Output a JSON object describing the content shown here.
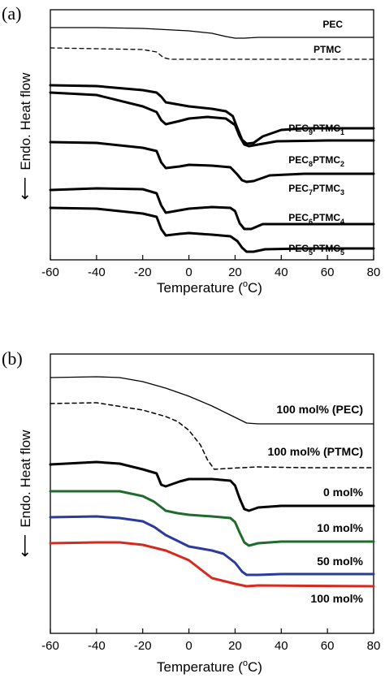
{
  "chart_data": [
    {
      "panel_label": "(a)",
      "type": "line",
      "xlabel": "Temperature (",
      "xlabel_sup": "o",
      "xlabel_end": "C)",
      "ylabel": "Endo. Heat flow",
      "ylabel_arrow": "⟵",
      "xlim": [
        -60,
        80
      ],
      "xticks": [
        -60,
        -40,
        -20,
        0,
        20,
        40,
        60,
        80
      ],
      "series": [
        {
          "label": {
            "base": "PEC"
          },
          "color": "#000000",
          "width": 1.3,
          "dashed": false,
          "points": [
            [
              -60,
              34
            ],
            [
              -40,
              34
            ],
            [
              -20,
              35
            ],
            [
              0,
              38
            ],
            [
              10,
              41
            ],
            [
              16,
              45
            ],
            [
              20,
              47
            ],
            [
              24,
              47
            ],
            [
              30,
              46
            ],
            [
              80,
              46
            ]
          ]
        },
        {
          "label": {
            "base": "PTMC"
          },
          "color": "#000000",
          "width": 1.3,
          "dashed": true,
          "points": [
            [
              -60,
              59
            ],
            [
              -40,
              60
            ],
            [
              -20,
              61
            ],
            [
              -14,
              64
            ],
            [
              -11,
              71
            ],
            [
              -8,
              73
            ],
            [
              0,
              73
            ],
            [
              20,
              73
            ],
            [
              80,
              73
            ]
          ]
        },
        {
          "label": {
            "base": "PEC",
            "s1": "9",
            "mid": "PTMC",
            "s2": "1"
          },
          "color": "#000000",
          "width": 3.0,
          "dashed": false,
          "points": [
            [
              -60,
              105
            ],
            [
              -40,
              106
            ],
            [
              -20,
              111
            ],
            [
              -14,
              114
            ],
            [
              -12,
              119
            ],
            [
              -10,
              126
            ],
            [
              -6,
              128
            ],
            [
              0,
              131
            ],
            [
              10,
              134
            ],
            [
              16,
              137
            ],
            [
              19,
              143
            ],
            [
              21,
              158
            ],
            [
              23,
              172
            ],
            [
              25,
              177
            ],
            [
              28,
              176
            ],
            [
              32,
              168
            ],
            [
              40,
              160
            ],
            [
              50,
              158
            ],
            [
              80,
              158
            ]
          ]
        },
        {
          "label": {
            "base": "PEC",
            "s1": "8",
            "mid": "PTMC",
            "s2": "2"
          },
          "color": "#000000",
          "width": 3.0,
          "dashed": false,
          "points": [
            [
              -60,
              114
            ],
            [
              -40,
              117
            ],
            [
              -20,
              131
            ],
            [
              -14,
              138
            ],
            [
              -12,
              148
            ],
            [
              -10,
              153
            ],
            [
              -4,
              149
            ],
            [
              0,
              146
            ],
            [
              8,
              144
            ],
            [
              16,
              146
            ],
            [
              20,
              154
            ],
            [
              22,
              168
            ],
            [
              24,
              178
            ],
            [
              26,
              180
            ],
            [
              30,
              178
            ],
            [
              38,
              174
            ],
            [
              60,
              173
            ],
            [
              80,
              173
            ]
          ]
        },
        {
          "label": {
            "base": "PEC",
            "s1": "7",
            "mid": "PTMC",
            "s2": "3"
          },
          "color": "#000000",
          "width": 3.0,
          "dashed": false,
          "points": [
            [
              -60,
              175
            ],
            [
              -40,
              176
            ],
            [
              -20,
              182
            ],
            [
              -14,
              186
            ],
            [
              -12,
              200
            ],
            [
              -10,
              207
            ],
            [
              -4,
              205
            ],
            [
              0,
              203
            ],
            [
              10,
              204
            ],
            [
              18,
              206
            ],
            [
              21,
              215
            ],
            [
              23,
              222
            ],
            [
              25,
              224
            ],
            [
              28,
              223
            ],
            [
              35,
              216
            ],
            [
              50,
              214
            ],
            [
              80,
              214
            ]
          ]
        },
        {
          "label": {
            "base": "PEC",
            "s1": "6",
            "mid": "PTMC",
            "s2": "4"
          },
          "color": "#000000",
          "width": 3.0,
          "dashed": false,
          "points": [
            [
              -60,
              234
            ],
            [
              -40,
              232
            ],
            [
              -20,
              233
            ],
            [
              -14,
              238
            ],
            [
              -12,
              253
            ],
            [
              -10,
              262
            ],
            [
              -4,
              259
            ],
            [
              0,
              257
            ],
            [
              10,
              255
            ],
            [
              18,
              256
            ],
            [
              20,
              260
            ],
            [
              22,
              275
            ],
            [
              24,
              282
            ],
            [
              27,
              282
            ],
            [
              32,
              276
            ],
            [
              50,
              276
            ],
            [
              80,
              276
            ]
          ]
        },
        {
          "label": {
            "base": "PEC",
            "s1": "5",
            "mid": "PTMC",
            "s2": "5"
          },
          "color": "#000000",
          "width": 3.0,
          "dashed": false,
          "points": [
            [
              -60,
              256
            ],
            [
              -40,
              257
            ],
            [
              -20,
              263
            ],
            [
              -14,
              267
            ],
            [
              -12,
              282
            ],
            [
              -10,
              290
            ],
            [
              -4,
              288
            ],
            [
              0,
              287
            ],
            [
              10,
              289
            ],
            [
              18,
              291
            ],
            [
              21,
              297
            ],
            [
              23,
              305
            ],
            [
              25,
              310
            ],
            [
              28,
              310
            ],
            [
              33,
              307
            ],
            [
              50,
              306
            ],
            [
              80,
              306
            ]
          ]
        }
      ]
    },
    {
      "panel_label": "(b)",
      "type": "line",
      "xlabel": "Temperature (",
      "xlabel_sup": "o",
      "xlabel_end": "C)",
      "ylabel": "Endo. Heat flow",
      "ylabel_arrow": "⟵",
      "xlim": [
        -60,
        80
      ],
      "xticks": [
        -60,
        -40,
        -20,
        0,
        20,
        40,
        60,
        80
      ],
      "series": [
        {
          "label": {
            "base": "100 mol% (PEC)"
          },
          "color": "#000000",
          "width": 1.3,
          "dashed": false,
          "points": [
            [
              -60,
              465
            ],
            [
              -40,
              464
            ],
            [
              -30,
              465
            ],
            [
              -20,
              470
            ],
            [
              -10,
              478
            ],
            [
              0,
              488
            ],
            [
              10,
              500
            ],
            [
              20,
              514
            ],
            [
              25,
              521
            ],
            [
              30,
              522
            ],
            [
              80,
              522
            ]
          ]
        },
        {
          "label": {
            "base": "100 mol% (PTMC)"
          },
          "color": "#000000",
          "width": 1.5,
          "dashed": true,
          "points": [
            [
              -60,
              497
            ],
            [
              -40,
              496
            ],
            [
              -20,
              505
            ],
            [
              -10,
              513
            ],
            [
              -5,
              519
            ],
            [
              0,
              530
            ],
            [
              5,
              548
            ],
            [
              8,
              566
            ],
            [
              11,
              578
            ],
            [
              16,
              577
            ],
            [
              30,
              575
            ],
            [
              50,
              576
            ],
            [
              80,
              576
            ]
          ]
        },
        {
          "label": {
            "base": "0 mol%"
          },
          "color": "#000000",
          "width": 3.0,
          "dashed": false,
          "points": [
            [
              -60,
              572
            ],
            [
              -40,
              569
            ],
            [
              -30,
              571
            ],
            [
              -20,
              578
            ],
            [
              -14,
              583
            ],
            [
              -12,
              597
            ],
            [
              -10,
              599
            ],
            [
              -4,
              593
            ],
            [
              0,
              590
            ],
            [
              10,
              590
            ],
            [
              18,
              592
            ],
            [
              20,
              598
            ],
            [
              22,
              614
            ],
            [
              24,
              627
            ],
            [
              26,
              629
            ],
            [
              30,
              625
            ],
            [
              40,
              623
            ],
            [
              80,
              623
            ]
          ]
        },
        {
          "label": {
            "base": "10 mol%"
          },
          "color": "#1e6b2d",
          "width": 3.0,
          "dashed": false,
          "points": [
            [
              -60,
              605
            ],
            [
              -40,
              605
            ],
            [
              -30,
              605
            ],
            [
              -20,
              611
            ],
            [
              -15,
              618
            ],
            [
              -10,
              629
            ],
            [
              -5,
              632
            ],
            [
              0,
              634
            ],
            [
              10,
              636
            ],
            [
              18,
              638
            ],
            [
              20,
              643
            ],
            [
              22,
              656
            ],
            [
              24,
              668
            ],
            [
              26,
              672
            ],
            [
              30,
              669
            ],
            [
              40,
              667
            ],
            [
              80,
              667
            ]
          ]
        },
        {
          "label": {
            "base": "50 mol%"
          },
          "color": "#2a3b9c",
          "width": 3.0,
          "dashed": false,
          "points": [
            [
              -60,
              637
            ],
            [
              -40,
              636
            ],
            [
              -30,
              638
            ],
            [
              -20,
              642
            ],
            [
              -15,
              649
            ],
            [
              -10,
              659
            ],
            [
              -5,
              666
            ],
            [
              0,
              673
            ],
            [
              10,
              678
            ],
            [
              15,
              682
            ],
            [
              20,
              693
            ],
            [
              23,
              704
            ],
            [
              25,
              708
            ],
            [
              30,
              708
            ],
            [
              40,
              707
            ],
            [
              80,
              707
            ]
          ]
        },
        {
          "label": {
            "base": "100 mol%"
          },
          "color": "#d62a1e",
          "width": 3.0,
          "dashed": false,
          "points": [
            [
              -60,
              669
            ],
            [
              -40,
              668
            ],
            [
              -30,
              668
            ],
            [
              -20,
              671
            ],
            [
              -10,
              678
            ],
            [
              0,
              690
            ],
            [
              10,
              712
            ],
            [
              20,
              719
            ],
            [
              25,
              722
            ],
            [
              30,
              721
            ],
            [
              80,
              722
            ]
          ]
        }
      ]
    }
  ]
}
